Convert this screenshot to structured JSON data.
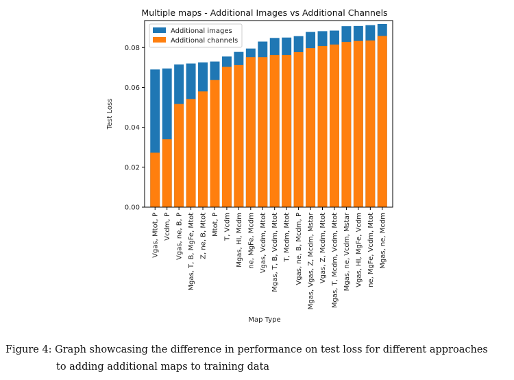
{
  "chart_data": {
    "type": "bar",
    "stacked_overlay": true,
    "title": "Multiple maps - Additional Images vs Additional Channels",
    "xlabel": "Map Type",
    "ylabel": "Test Loss",
    "ylim": [
      0,
      0.0935
    ],
    "yticks": [
      0.0,
      0.02,
      0.04,
      0.06,
      0.08
    ],
    "yticks_labels": [
      "0.00",
      "0.02",
      "0.04",
      "0.06",
      "0.08"
    ],
    "grid": false,
    "legend_position": "top-left",
    "categories": [
      "Vgas, Mtot, P",
      "Vcdm, P",
      "Vgas, ne, B, P",
      "Mgas, T, B, MgFe, Mtot",
      "Z, ne, B, Mtot",
      "Mtot, P",
      "T, Vcdm",
      "Mgas, HI, Mcdm",
      "ne, MgFe, Mcdm",
      "Vgas, Vcdm, Mtot",
      "Mgas, T, B, Vcdm, Mtot",
      "T, Mcdm, Mtot",
      "Vgas, ne, B, Mcdm, P",
      "Mgas, Vgas, Z, Mcdm, Mstar",
      "Vgas, Z, Mcdm, Mtot",
      "Mgas, T, Mcdm, Vcdm, Mtot",
      "Mgas, ne, Vcdm, Mstar",
      "Vgas, HI, MgFe, Vcdm",
      "ne, MgFe, Vcdm, Mtot",
      "Mgas, ne, Mcdm"
    ],
    "series": [
      {
        "name": "Additional images",
        "color": "#1f77b4",
        "values": [
          0.069,
          0.0695,
          0.0715,
          0.072,
          0.0725,
          0.073,
          0.0755,
          0.0778,
          0.0795,
          0.083,
          0.0848,
          0.085,
          0.0857,
          0.0878,
          0.0882,
          0.0885,
          0.0907,
          0.0908,
          0.0912,
          0.0918
        ]
      },
      {
        "name": "Additional channels",
        "color": "#ff7f0e",
        "values": [
          0.0273,
          0.034,
          0.0517,
          0.0542,
          0.058,
          0.0637,
          0.0703,
          0.0712,
          0.0752,
          0.0752,
          0.0763,
          0.0763,
          0.0777,
          0.0797,
          0.0808,
          0.0815,
          0.0828,
          0.0833,
          0.0835,
          0.0858
        ]
      }
    ]
  },
  "caption": {
    "line1": "Figure 4: Graph showcasing the difference in performance on test loss for different approaches",
    "line2": "to adding additional maps to training data"
  }
}
